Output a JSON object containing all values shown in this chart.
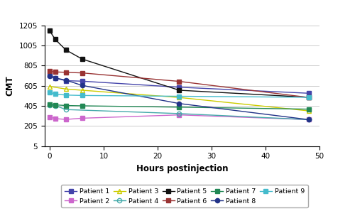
{
  "xlabel": "Hours postinjection",
  "ylabel": "CMT",
  "ylim": [
    5,
    1205
  ],
  "xlim": [
    -1,
    50
  ],
  "yticks": [
    5,
    205,
    405,
    605,
    805,
    1005,
    1205
  ],
  "xticks": [
    0,
    10,
    20,
    30,
    40,
    50
  ],
  "patients": {
    "Patient 1": {
      "x": [
        0,
        1,
        3,
        6,
        24,
        48
      ],
      "y": [
        710,
        680,
        655,
        650,
        590,
        530
      ],
      "color": "#4444aa",
      "marker": "s",
      "marker_face": "#4444aa"
    },
    "Patient 2": {
      "x": [
        0,
        1,
        3,
        6,
        24,
        48
      ],
      "y": [
        295,
        278,
        270,
        282,
        315,
        268
      ],
      "color": "#cc66cc",
      "marker": "s",
      "marker_face": "#cc66cc"
    },
    "Patient 3": {
      "x": [
        0,
        3,
        6,
        24,
        48
      ],
      "y": [
        598,
        572,
        560,
        488,
        355
      ],
      "color": "#cccc00",
      "marker": "^",
      "marker_face": "none"
    },
    "Patient 4": {
      "x": [
        0,
        1,
        3,
        24,
        48
      ],
      "y": [
        415,
        408,
        368,
        328,
        268
      ],
      "color": "#44aaaa",
      "marker": "o",
      "marker_face": "none"
    },
    "Patient 5": {
      "x": [
        0,
        1,
        3,
        6,
        24,
        48
      ],
      "y": [
        1150,
        1065,
        960,
        870,
        560,
        490
      ],
      "color": "#111111",
      "marker": "s",
      "marker_face": "#111111"
    },
    "Patient 6": {
      "x": [
        0,
        1,
        3,
        6,
        24,
        48
      ],
      "y": [
        748,
        742,
        738,
        732,
        648,
        488
      ],
      "color": "#993333",
      "marker": "s",
      "marker_face": "#993333"
    },
    "Patient 7": {
      "x": [
        0,
        1,
        3,
        6,
        24,
        48
      ],
      "y": [
        420,
        415,
        408,
        405,
        392,
        372
      ],
      "color": "#228855",
      "marker": "s",
      "marker_face": "#228855"
    },
    "Patient 8": {
      "x": [
        0,
        1,
        3,
        6,
        24,
        48
      ],
      "y": [
        700,
        682,
        660,
        608,
        428,
        268
      ],
      "color": "#223388",
      "marker": "o",
      "marker_face": "#223388"
    },
    "Patient 9": {
      "x": [
        0,
        1,
        3,
        6,
        24,
        48
      ],
      "y": [
        542,
        522,
        512,
        508,
        500,
        490
      ],
      "color": "#44bbcc",
      "marker": "s",
      "marker_face": "#44bbcc"
    }
  },
  "background_color": "#ffffff",
  "grid_color": "#cccccc"
}
